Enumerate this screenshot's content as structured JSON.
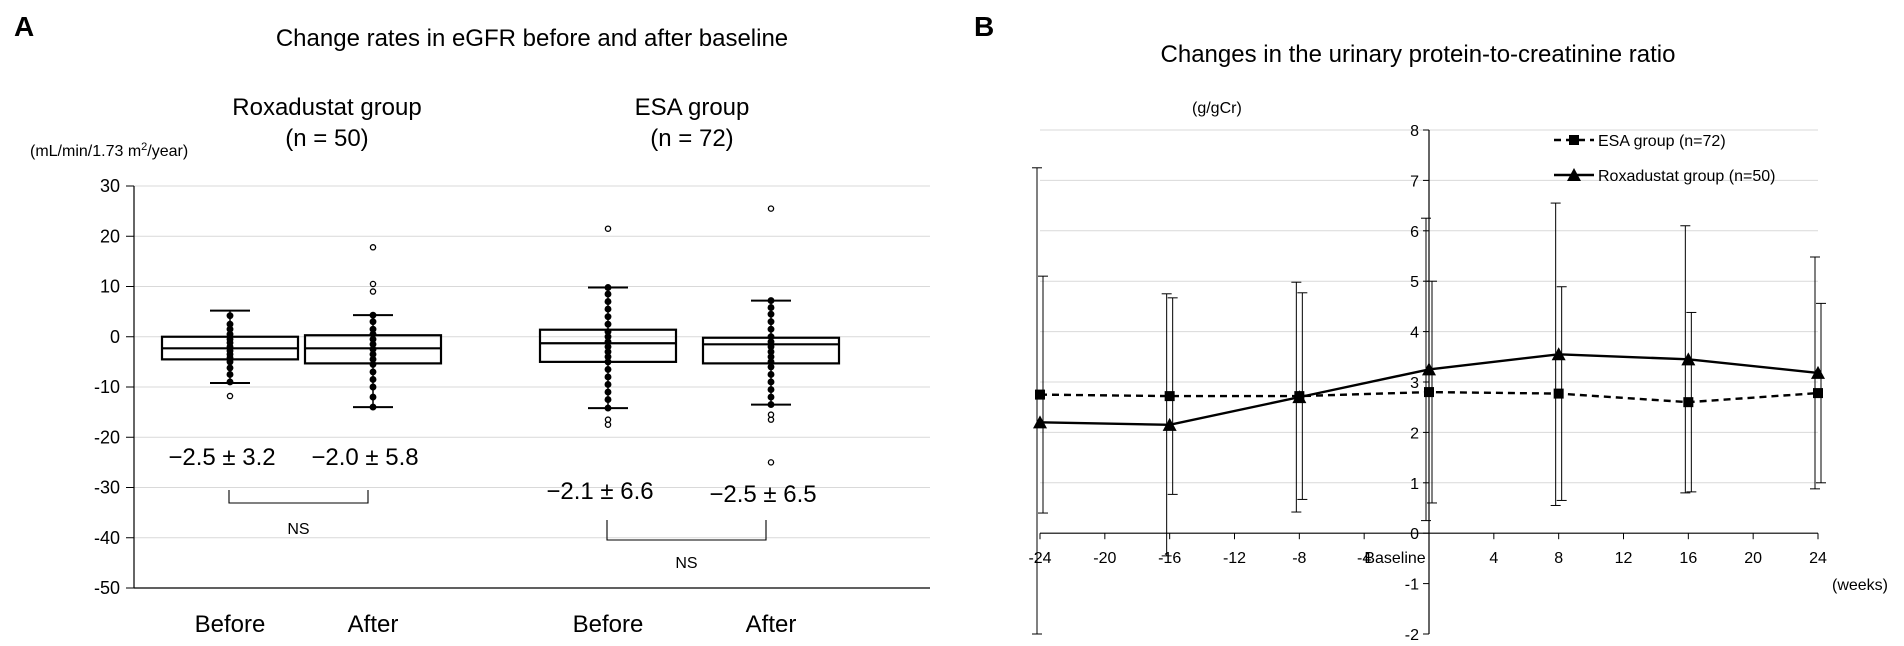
{
  "chart_data": [
    {
      "type": "box",
      "panel_label": "A",
      "title": "Change rates in eGFR before and after baseline",
      "ylabel": "(mL/min/1.73 m²/year)",
      "ylabel_main": "(mL/min/1.73 m",
      "ylabel_sup": "2",
      "ylabel_tail": "/year)",
      "ylim": [
        -50,
        30
      ],
      "yticks": [
        30,
        20,
        10,
        0,
        -10,
        -20,
        -30,
        -40,
        -50
      ],
      "ytick_labels": [
        "30",
        "20",
        "10",
        "0",
        "-10",
        "-20",
        "-30",
        "-40",
        "-50"
      ],
      "groups": [
        {
          "name": "Roxadustat group",
          "n_label": "(n = 50)",
          "comparison": "NS",
          "boxes": [
            {
              "label": "Before",
              "q1": -4.5,
              "median": -2.3,
              "q3": 0.0,
              "whisker_low": -9.2,
              "whisker_high": 5.2,
              "stat": "−2.5 ± 3.2",
              "points": [
                -11.8,
                -9.0,
                -7.5,
                -6.2,
                -5.0,
                -4.2,
                -3.5,
                -2.8,
                -2.0,
                -1.2,
                -0.5,
                0.5,
                1.5,
                2.5,
                4.2
              ]
            },
            {
              "label": "After",
              "q1": -5.3,
              "median": -2.3,
              "q3": 0.3,
              "whisker_low": -14.0,
              "whisker_high": 4.3,
              "stat": "−2.0 ± 5.8",
              "points": [
                -14.0,
                -12.0,
                -10.0,
                -8.5,
                -7.0,
                -5.5,
                -4.5,
                -3.5,
                -2.5,
                -1.5,
                -0.5,
                0.5,
                1.5,
                3.0,
                4.3,
                9.0,
                10.5,
                17.8
              ]
            }
          ]
        },
        {
          "name": "ESA group",
          "n_label": "(n = 72)",
          "comparison": "NS",
          "boxes": [
            {
              "label": "Before",
              "q1": -5.0,
              "median": -1.3,
              "q3": 1.4,
              "whisker_low": -14.2,
              "whisker_high": 9.8,
              "stat": "−2.1 ± 6.6",
              "points": [
                -17.5,
                -16.5,
                -14.2,
                -12.5,
                -11.0,
                -9.5,
                -8.0,
                -6.5,
                -5.0,
                -4.0,
                -3.0,
                -2.0,
                -1.0,
                0.0,
                1.0,
                2.5,
                4.0,
                5.5,
                7.0,
                8.5,
                9.8,
                21.5
              ]
            },
            {
              "label": "After",
              "q1": -5.3,
              "median": -1.5,
              "q3": -0.2,
              "whisker_low": -13.5,
              "whisker_high": 7.2,
              "stat": "−2.5 ± 6.5",
              "points": [
                -25.0,
                -16.5,
                -15.5,
                -13.5,
                -12.0,
                -10.5,
                -9.0,
                -7.5,
                -6.0,
                -5.0,
                -4.0,
                -3.0,
                -2.0,
                -1.0,
                0.0,
                1.5,
                3.0,
                4.5,
                5.8,
                7.2,
                25.5
              ]
            }
          ]
        }
      ]
    },
    {
      "type": "line",
      "panel_label": "B",
      "title": "Changes in the urinary protein-to-creatinine ratio",
      "ylabel": "(g/gCr)",
      "xlabel": "(weeks)",
      "ylim": [
        -2,
        8
      ],
      "xlim": [
        -24,
        24
      ],
      "yticks": [
        8,
        7,
        6,
        5,
        4,
        3,
        2,
        1,
        0,
        -1,
        -2
      ],
      "ytick_labels": [
        "8",
        "7",
        "6",
        "5",
        "4",
        "3",
        "2",
        "1",
        "0",
        "-1",
        "-2"
      ],
      "xticks": [
        -24,
        -20,
        -16,
        -12,
        -8,
        -4,
        0,
        4,
        8,
        12,
        16,
        20,
        24
      ],
      "xtick_labels": [
        "-24",
        "-20",
        "-16",
        "-12",
        "-8",
        "-4",
        "Baseline",
        "4",
        "8",
        "12",
        "16",
        "20",
        "24"
      ],
      "legend_position": "top-right",
      "series": [
        {
          "name": "ESA group (n=72)",
          "line_style": "dashed",
          "marker": "square",
          "x": [
            -24,
            -16,
            -8,
            0,
            8,
            16,
            24
          ],
          "y": [
            2.75,
            2.72,
            2.72,
            2.8,
            2.77,
            2.6,
            2.78
          ],
          "err": [
            2.35,
            1.95,
            2.05,
            2.2,
            2.12,
            1.78,
            1.78
          ]
        },
        {
          "name": "Roxadustat group (n=50)",
          "line_style": "solid",
          "marker": "triangle",
          "x": [
            -24,
            -16,
            -8,
            0,
            8,
            16,
            24
          ],
          "y": [
            2.2,
            2.15,
            2.7,
            3.25,
            3.55,
            3.45,
            3.18
          ],
          "err": [
            5.05,
            2.6,
            2.28,
            3.0,
            3.0,
            2.65,
            2.3
          ]
        }
      ]
    }
  ]
}
